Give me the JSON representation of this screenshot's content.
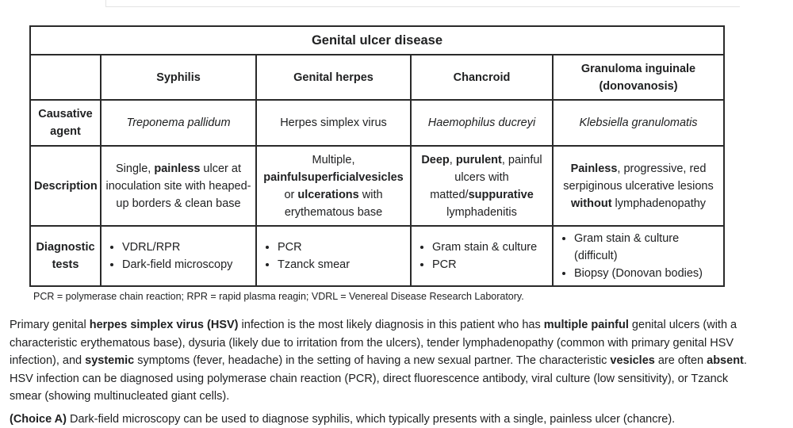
{
  "table": {
    "title": "Genital ulcer disease",
    "columns": [
      "Syphilis",
      "Genital herpes",
      "Chancroid",
      "Granuloma inguinale (donovanosis)"
    ],
    "rows": {
      "agent": {
        "label": "Causative agent",
        "cells": [
          "Treponema pallidum",
          "Herpes simplex virus",
          "Haemophilus ducreyi",
          "Klebsiella granulomatis"
        ]
      },
      "description": {
        "label": "Description",
        "cells": [
          [
            "Single, ",
            {
              "b": "painless"
            },
            " ulcer at inoculation site with heaped-up borders & clean base"
          ],
          [
            "Multiple, ",
            {
              "b": "painfulsuperficialvesicles"
            },
            " or ",
            {
              "b": "ulcerations"
            },
            " with erythematous base"
          ],
          [
            {
              "b": "Deep"
            },
            ", ",
            {
              "b": "purulent"
            },
            ", painful ulcers with matted/",
            {
              "b": "suppurative"
            },
            " lymphadenitis"
          ],
          [
            {
              "b": "Painless"
            },
            ", progressive, red serpiginous ulcerative lesions ",
            {
              "b": "without"
            },
            " lymphadenopathy"
          ]
        ]
      },
      "diagnostic": {
        "label": "Diagnostic tests",
        "cells": [
          [
            "VDRL/RPR",
            "Dark-field microscopy"
          ],
          [
            "PCR",
            "Tzanck smear"
          ],
          [
            "Gram stain & culture",
            "PCR"
          ],
          [
            "Gram stain & culture (difficult)",
            "Biopsy (Donovan bodies)"
          ]
        ]
      }
    }
  },
  "footnote": "PCR = polymerase chain reaction; RPR = rapid plasma reagin; VDRL = Venereal Disease Research Laboratory.",
  "paragraph": [
    "Primary genital ",
    {
      "b": "herpes simplex virus (HSV)"
    },
    " infection is the most likely diagnosis in this patient who has ",
    {
      "b": "multiple painful"
    },
    " genital ulcers (with a characteristic erythematous base), dysuria (likely due to irritation from the ulcers), tender lymphadenopathy (common with primary genital HSV infection), and ",
    {
      "b": "systemic"
    },
    " symptoms (fever, headache) in the setting of having a new sexual partner.  The characteristic ",
    {
      "b": "vesicles"
    },
    " are often ",
    {
      "b": "absent"
    },
    ". HSV infection can be diagnosed using polymerase chain reaction (PCR), direct fluorescence antibody, viral culture (low sensitivity), or Tzanck smear (showing multinucleated giant cells)."
  ],
  "cut_line": "(Choice A)  Dark-field microscopy can be used to diagnose syphilis, which typically presents with a single, painless ulcer (chancre)."
}
